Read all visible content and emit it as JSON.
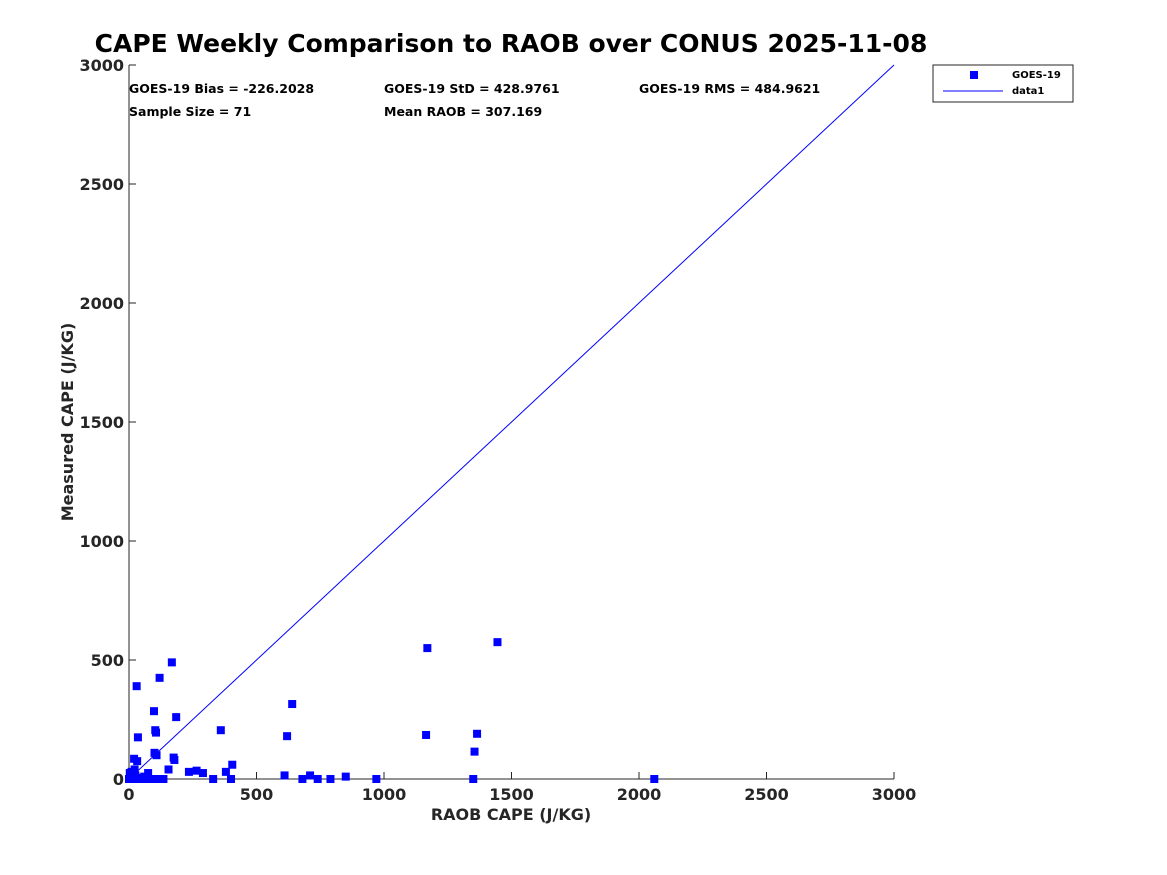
{
  "chart_data": {
    "type": "scatter",
    "title": "CAPE Weekly Comparison to RAOB over CONUS 2025-11-08",
    "xlabel": "RAOB CAPE (J/KG)",
    "ylabel": "Measured CAPE (J/KG)",
    "xlim": [
      0,
      3000
    ],
    "ylim": [
      0,
      3000
    ],
    "xticks": [
      0,
      500,
      1000,
      1500,
      2000,
      2500,
      3000
    ],
    "yticks": [
      0,
      500,
      1000,
      1500,
      2000,
      2500,
      3000
    ],
    "xtick_labels": [
      "0",
      "500",
      "1000",
      "1500",
      "2000",
      "2500",
      "3000"
    ],
    "ytick_labels": [
      "0",
      "500",
      "1000",
      "1500",
      "2000",
      "2500",
      "3000"
    ],
    "grid": false,
    "legend_position": "top-right, outside",
    "stats": {
      "bias": "GOES-19 Bias = -226.2028",
      "std": "GOES-19 StD = 428.9761",
      "rms": "GOES-19 RMS = 484.9621",
      "sample": "Sample Size = 71",
      "mean": "Mean RAOB = 307.169"
    },
    "series": [
      {
        "name": "GOES-19",
        "kind": "scatter",
        "marker": "square",
        "color": "#0000ff",
        "points": [
          [
            0,
            0
          ],
          [
            3,
            25
          ],
          [
            5,
            0
          ],
          [
            8,
            10
          ],
          [
            10,
            30
          ],
          [
            12,
            0
          ],
          [
            15,
            5
          ],
          [
            18,
            0
          ],
          [
            20,
            85
          ],
          [
            22,
            40
          ],
          [
            25,
            15
          ],
          [
            28,
            0
          ],
          [
            30,
            390
          ],
          [
            32,
            75
          ],
          [
            35,
            175
          ],
          [
            38,
            0
          ],
          [
            42,
            5
          ],
          [
            50,
            0
          ],
          [
            60,
            10
          ],
          [
            70,
            0
          ],
          [
            75,
            25
          ],
          [
            85,
            0
          ],
          [
            95,
            0
          ],
          [
            98,
            285
          ],
          [
            100,
            110
          ],
          [
            103,
            205
          ],
          [
            106,
            195
          ],
          [
            108,
            100
          ],
          [
            110,
            0
          ],
          [
            120,
            425
          ],
          [
            125,
            0
          ],
          [
            135,
            0
          ],
          [
            155,
            40
          ],
          [
            168,
            490
          ],
          [
            175,
            90
          ],
          [
            178,
            80
          ],
          [
            185,
            260
          ],
          [
            235,
            30
          ],
          [
            265,
            35
          ],
          [
            290,
            25
          ],
          [
            330,
            0
          ],
          [
            360,
            205
          ],
          [
            380,
            30
          ],
          [
            400,
            0
          ],
          [
            405,
            60
          ],
          [
            610,
            15
          ],
          [
            620,
            180
          ],
          [
            640,
            315
          ],
          [
            680,
            0
          ],
          [
            710,
            15
          ],
          [
            740,
            0
          ],
          [
            790,
            0
          ],
          [
            850,
            10
          ],
          [
            970,
            0
          ],
          [
            1165,
            185
          ],
          [
            1170,
            550
          ],
          [
            1350,
            0
          ],
          [
            1355,
            115
          ],
          [
            1365,
            190
          ],
          [
            1445,
            575
          ],
          [
            2060,
            0
          ]
        ]
      },
      {
        "name": "data1",
        "kind": "line",
        "color": "#0000ff",
        "points": [
          [
            0,
            0
          ],
          [
            3000,
            3000
          ]
        ]
      }
    ]
  }
}
